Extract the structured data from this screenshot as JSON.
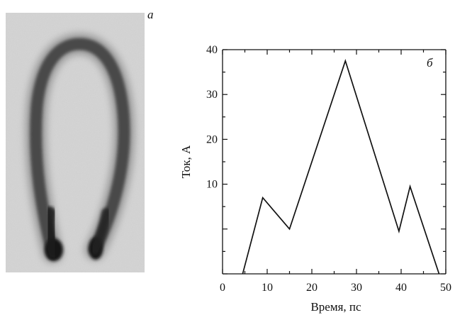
{
  "figure": {
    "panel_a_label": "а",
    "panel_b_label": "б",
    "panel_a_image": "streak-camera image of a horseshoe-shaped dark trace on a grey background"
  },
  "chart_data": {
    "type": "line",
    "xlabel": "Время, пс",
    "ylabel": "Ток, А",
    "xlim": [
      0,
      50
    ],
    "ylim": [
      -10,
      40
    ],
    "xticks": [
      0,
      10,
      20,
      30,
      40,
      50
    ],
    "yticks": [
      10,
      20,
      30,
      40
    ],
    "grid": false,
    "series": [
      {
        "points": [
          [
            4.5,
            -10
          ],
          [
            9,
            7
          ],
          [
            15,
            0
          ],
          [
            27.5,
            37.5
          ],
          [
            39.5,
            -0.5
          ],
          [
            42,
            9.5
          ],
          [
            48.5,
            -10
          ]
        ]
      }
    ]
  }
}
